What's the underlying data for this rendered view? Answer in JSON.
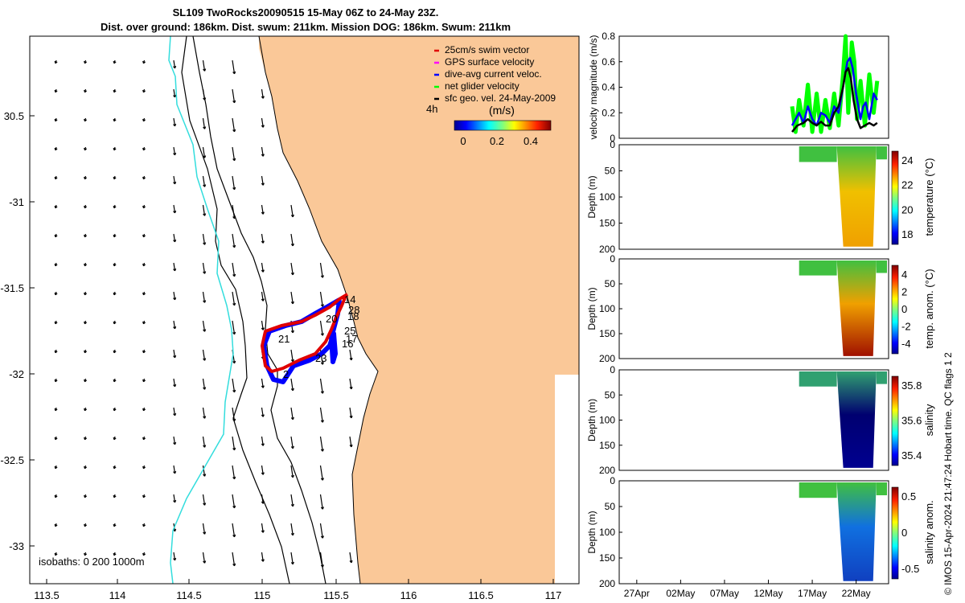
{
  "header": {
    "title_line1": "SL109 TwoRocks20090515 15-May 06Z to 24-May 23Z.",
    "title_line2": "Dist. over ground: 186km. Dist. swum: 211km. Mission DOG: 186km. Swum: 211km"
  },
  "credit": "© IMOS 15-Apr-2024 21:47:24 Hobart time. QC flags 1  2",
  "colors": {
    "land": "#fac898",
    "swim_vector": "#e00000",
    "gps_velocity": "#ff00ff",
    "dive_avg": "#0000ff",
    "net_glider": "#00ff00",
    "sfc_geo": "#000000",
    "isobath_shallow": "#33dddd"
  },
  "map": {
    "x_ticks": [
      "113.5",
      "114",
      "114.5",
      "115",
      "115.5",
      "116",
      "116.5",
      "117"
    ],
    "y_ticks": [
      "30.5",
      "-31",
      "-31.5",
      "-32",
      "-32.5",
      "-33"
    ],
    "legend": [
      {
        "label": "25cm/s swim vector",
        "color": "#e00000"
      },
      {
        "label": "GPS surface velocity",
        "color": "#ff00ff"
      },
      {
        "label": "dive-avg current veloc.",
        "color": "#0000ff"
      },
      {
        "label": "net glider velocity",
        "color": "#00ff00"
      },
      {
        "label": "sfc geo. vel. 24-May-2009",
        "color": "#000000"
      }
    ],
    "colorbar_label": "(m/s)",
    "colorbar_ticks": [
      "0",
      "0.2",
      "0.4"
    ],
    "time_note": "4h",
    "isobaths_label": "isobaths: 0   200  1000m",
    "day_labels": [
      "14",
      "28",
      "20",
      "18",
      "25",
      "17",
      "16",
      "21",
      "23",
      "2"
    ]
  },
  "chart_data": [
    {
      "type": "line",
      "title": "",
      "ylabel": "velocity magnitude (m/s)",
      "ylim": [
        0,
        0.8
      ],
      "yticks": [
        "0",
        "0.2",
        "0.4",
        "0.6",
        "0.8"
      ],
      "series": [
        {
          "name": "net glider velocity",
          "color": "#00ff00",
          "x": [
            15.2,
            15.6,
            16,
            16.5,
            17,
            17.5,
            18,
            18.5,
            19,
            19.5,
            20,
            20.5,
            21,
            21.3,
            21.6,
            22,
            22.3,
            22.6,
            23,
            23.5,
            24,
            24.5,
            24.9
          ],
          "values": [
            0.25,
            0.05,
            0.3,
            0.1,
            0.42,
            0.05,
            0.35,
            0.05,
            0.3,
            0.08,
            0.35,
            0.1,
            0.5,
            0.8,
            0.2,
            0.75,
            0.6,
            0.15,
            0.45,
            0.1,
            0.5,
            0.2,
            0.45
          ]
        },
        {
          "name": "dive-avg current veloc.",
          "color": "#0000ff",
          "x": [
            15.2,
            15.6,
            16,
            16.5,
            17,
            17.5,
            18,
            18.5,
            19,
            19.5,
            20,
            20.5,
            21,
            21.5,
            21.8,
            22.1,
            22.5,
            23,
            23.3,
            23.6,
            24,
            24.5,
            24.9
          ],
          "values": [
            0.1,
            0.15,
            0.2,
            0.12,
            0.25,
            0.15,
            0.1,
            0.2,
            0.18,
            0.12,
            0.25,
            0.2,
            0.4,
            0.6,
            0.63,
            0.55,
            0.35,
            0.15,
            0.25,
            0.28,
            0.15,
            0.35,
            0.3
          ]
        },
        {
          "name": "sfc geo. vel. 24-May-2009",
          "color": "#000000",
          "x": [
            15.2,
            15.8,
            16.5,
            17,
            17.5,
            18,
            18.5,
            19,
            19.5,
            20,
            20.5,
            21,
            21.3,
            21.6,
            21.9,
            22.2,
            22.6,
            23,
            23.5,
            24,
            24.5,
            24.9
          ],
          "values": [
            0.05,
            0.1,
            0.12,
            0.15,
            0.12,
            0.1,
            0.13,
            0.1,
            0.1,
            0.2,
            0.25,
            0.4,
            0.52,
            0.55,
            0.47,
            0.3,
            0.15,
            0.08,
            0.1,
            0.12,
            0.1,
            0.12
          ]
        }
      ]
    },
    {
      "type": "heatmap",
      "ylabel": "Depth (m)",
      "ylim": [
        200,
        0
      ],
      "yticks": [
        "0",
        "50",
        "100",
        "150",
        "200"
      ],
      "colorbar_label": "temperature (°C)",
      "colorbar_ticks": [
        "24",
        "22",
        "20",
        "18"
      ]
    },
    {
      "type": "heatmap",
      "ylabel": "Depth (m)",
      "ylim": [
        200,
        0
      ],
      "yticks": [
        "0",
        "50",
        "100",
        "150",
        "200"
      ],
      "colorbar_label": "temp. anom. (°C)",
      "colorbar_ticks": [
        "4",
        "2",
        "0",
        "-2",
        "-4"
      ]
    },
    {
      "type": "heatmap",
      "ylabel": "Depth (m)",
      "ylim": [
        200,
        0
      ],
      "yticks": [
        "0",
        "50",
        "100",
        "150",
        "200"
      ],
      "colorbar_label": "salinity",
      "colorbar_ticks": [
        "35.8",
        "35.6",
        "35.4"
      ]
    },
    {
      "type": "heatmap",
      "ylabel": "Depth (m)",
      "ylim": [
        200,
        0
      ],
      "yticks": [
        "0",
        "50",
        "100",
        "150",
        "200"
      ],
      "colorbar_label": "salinity anom.",
      "colorbar_ticks": [
        "0.5",
        "0",
        "-0.5"
      ],
      "x_ticks": [
        "27Apr",
        "02May",
        "07May",
        "12May",
        "17May",
        "22May"
      ]
    }
  ]
}
